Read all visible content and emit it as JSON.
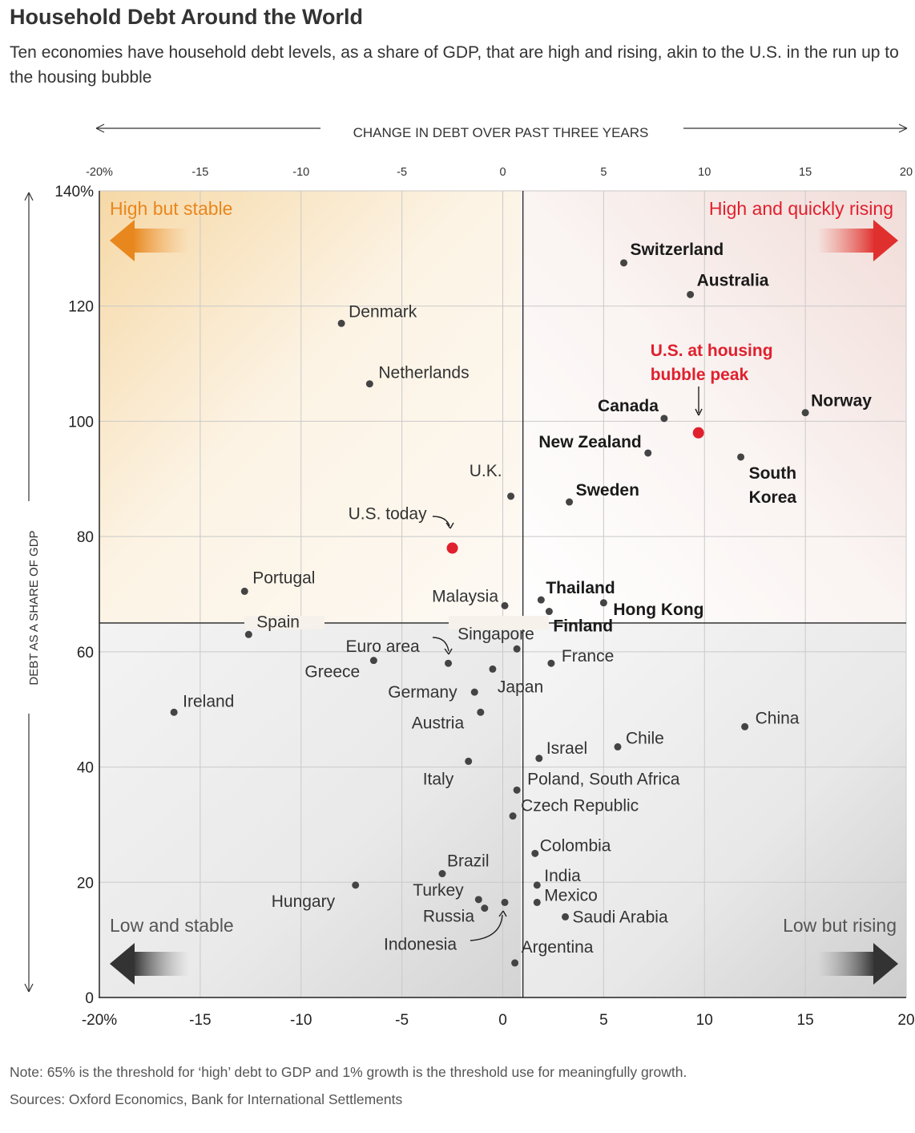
{
  "title": "Household Debt Around the World",
  "subtitle": "Ten economies have household debt levels, as a share of GDP, that are high and rising, akin to the U.S. in the run up to the housing bubble",
  "note": "Note: 65% is the threshold for ‘high’ debt to GDP and 1% growth is the threshold use for meaningfully growth.",
  "source": "Sources: Oxford Economics, Bank for International Settlements",
  "colors": {
    "point": "#444444",
    "us_point": "#e0202e",
    "us_label": "#e0202e",
    "high_stable": "#e8871e",
    "high_rising": "#e0202e",
    "low": "#555555"
  },
  "chart_data": {
    "type": "scatter",
    "xlabel": "CHANGE IN DEBT OVER PAST THREE YEARS",
    "ylabel": "DEBT AS A SHARE OF GDP",
    "xlim": [
      -20,
      20
    ],
    "ylim": [
      0,
      140
    ],
    "x_ticks": [
      -20,
      -15,
      -10,
      -5,
      0,
      5,
      10,
      15,
      20
    ],
    "x_tick_labels": [
      "-20%",
      "-15",
      "-10",
      "-5",
      "0",
      "5",
      "10",
      "15",
      "20"
    ],
    "y_ticks": [
      0,
      20,
      40,
      60,
      80,
      100,
      120,
      140
    ],
    "y_tick_labels": [
      "0",
      "20",
      "40",
      "60",
      "80",
      "100",
      "120",
      "140%"
    ],
    "grid": true,
    "thresholds": {
      "x": 1,
      "y": 65
    },
    "quadrants": {
      "top_left": "High but stable",
      "top_right": "High and quickly rising",
      "bottom_left": "Low and stable",
      "bottom_right": "Low but rising"
    },
    "points": [
      {
        "name": "Switzerland",
        "x": 6.0,
        "y": 127.5,
        "bold": true
      },
      {
        "name": "Australia",
        "x": 9.3,
        "y": 122.0,
        "bold": true
      },
      {
        "name": "Denmark",
        "x": -8.0,
        "y": 117.0
      },
      {
        "name": "Netherlands",
        "x": -6.6,
        "y": 106.5
      },
      {
        "name": "Canada",
        "x": 8.0,
        "y": 100.5,
        "bold": true
      },
      {
        "name": "Norway",
        "x": 15.0,
        "y": 101.5,
        "bold": true
      },
      {
        "name": "New Zealand",
        "x": 7.2,
        "y": 94.5,
        "bold": true
      },
      {
        "name": "South Korea",
        "x": 11.8,
        "y": 93.8,
        "bold": true
      },
      {
        "name": "U.K.",
        "x": 0.4,
        "y": 87.0
      },
      {
        "name": "Sweden",
        "x": 3.3,
        "y": 86.0,
        "bold": true
      },
      {
        "name": "U.S. at housing bubble peak",
        "x": 9.7,
        "y": 98.0,
        "highlight": true
      },
      {
        "name": "U.S. today",
        "x": -2.5,
        "y": 78.0,
        "highlight": true
      },
      {
        "name": "Portugal",
        "x": -12.8,
        "y": 70.5
      },
      {
        "name": "Malaysia",
        "x": 0.1,
        "y": 68.0
      },
      {
        "name": "Thailand",
        "x": 1.9,
        "y": 69.0,
        "bold": true
      },
      {
        "name": "Hong Kong",
        "x": 5.0,
        "y": 68.5,
        "bold": true
      },
      {
        "name": "Finland",
        "x": 2.3,
        "y": 67.0,
        "bold": true
      },
      {
        "name": "Spain",
        "x": -12.6,
        "y": 63.0
      },
      {
        "name": "Singapore",
        "x": 0.7,
        "y": 60.5
      },
      {
        "name": "Euro area",
        "x": -2.7,
        "y": 58.0
      },
      {
        "name": "Greece",
        "x": -6.4,
        "y": 58.5
      },
      {
        "name": "France",
        "x": 2.4,
        "y": 58.0
      },
      {
        "name": "Japan",
        "x": -0.5,
        "y": 57.0
      },
      {
        "name": "Germany",
        "x": -1.4,
        "y": 53.0
      },
      {
        "name": "Austria",
        "x": -1.1,
        "y": 49.5
      },
      {
        "name": "Ireland",
        "x": -16.3,
        "y": 49.5
      },
      {
        "name": "China",
        "x": 12.0,
        "y": 47.0
      },
      {
        "name": "Chile",
        "x": 5.7,
        "y": 43.5
      },
      {
        "name": "Israel",
        "x": 1.8,
        "y": 41.5
      },
      {
        "name": "Italy",
        "x": -1.7,
        "y": 41.0
      },
      {
        "name": "Poland, South Africa",
        "x": 0.7,
        "y": 36.0
      },
      {
        "name": "Czech Republic",
        "x": 0.5,
        "y": 31.5
      },
      {
        "name": "Colombia",
        "x": 1.6,
        "y": 25.0
      },
      {
        "name": "Brazil",
        "x": -3.0,
        "y": 21.5
      },
      {
        "name": "Hungary",
        "x": -7.3,
        "y": 19.5
      },
      {
        "name": "India",
        "x": 1.7,
        "y": 19.5
      },
      {
        "name": "Turkey",
        "x": -1.2,
        "y": 17.0
      },
      {
        "name": "Mexico",
        "x": 1.7,
        "y": 16.5
      },
      {
        "name": "Indonesia",
        "x": 0.1,
        "y": 16.5
      },
      {
        "name": "Russia",
        "x": -0.9,
        "y": 15.5
      },
      {
        "name": "Saudi Arabia",
        "x": 3.1,
        "y": 14.0
      },
      {
        "name": "Argentina",
        "x": 0.6,
        "y": 6.0
      }
    ]
  }
}
